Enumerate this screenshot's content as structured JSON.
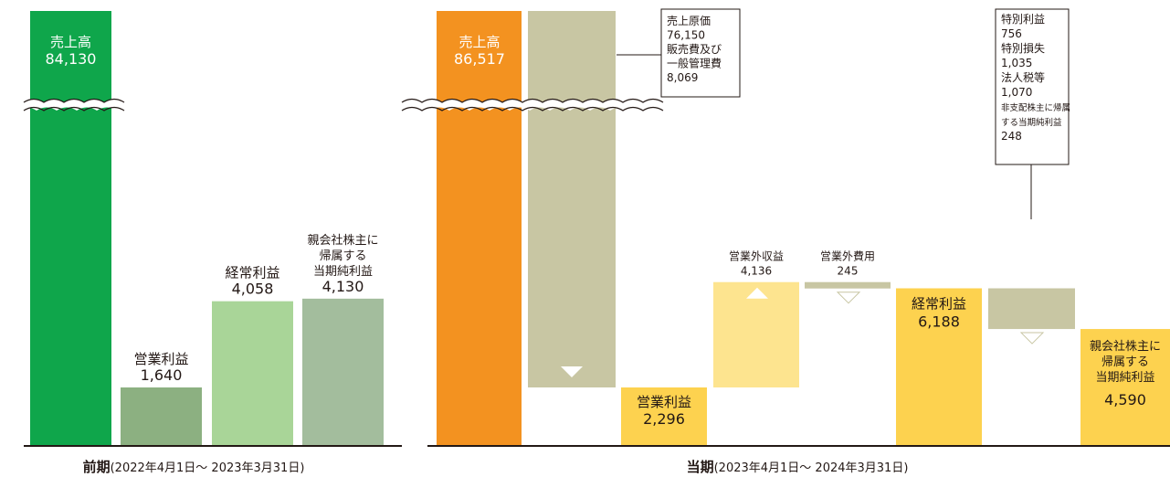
{
  "chart_data": [
    {
      "type": "bar",
      "period_label": "前期",
      "period_range": "(2022年4月1日〜 2023年3月31日)",
      "bars": [
        {
          "label": "売上高",
          "value": "84,130",
          "v": 84130,
          "color": "#0fa64b",
          "broken": true
        },
        {
          "label": "営業利益",
          "value": "1,640",
          "v": 1640,
          "color": "#8cb081"
        },
        {
          "label": "経常利益",
          "value": "4,058",
          "v": 4058,
          "color": "#a9d598"
        },
        {
          "label": "親会社株主に\n帰属する\n当期純利益",
          "value": "4,130",
          "v": 4130,
          "color": "#a3bd9d"
        }
      ]
    },
    {
      "type": "waterfall",
      "period_label": "当期",
      "period_range": "(2023年4月1日〜 2024年3月31日)",
      "bars": [
        {
          "label": "売上高",
          "value": "86,517",
          "v": 86517,
          "color": "#f39220",
          "broken": true
        },
        {
          "kind": "decrease",
          "color": "#c8c6a3",
          "items": [
            {
              "label": "売上原価",
              "value": "76,150"
            },
            {
              "label": "販売費及び\n一般管理費",
              "value": "8,069"
            }
          ]
        },
        {
          "label": "営業利益",
          "value": "2,296",
          "v": 2296,
          "color": "#fdd24f"
        },
        {
          "kind": "increase",
          "label": "営業外収益",
          "value": "4,136",
          "v": 4136,
          "color": "#fde48f"
        },
        {
          "kind": "decrease",
          "label": "営業外費用",
          "value": "245",
          "v": 245,
          "color": "#c8c6a3"
        },
        {
          "label": "経常利益",
          "value": "6,188",
          "v": 6188,
          "color": "#fdd24f"
        },
        {
          "kind": "decrease",
          "color": "#c8c6a3",
          "items": [
            {
              "label": "特別利益",
              "value": "756"
            },
            {
              "label": "特別損失",
              "value": "1,035"
            },
            {
              "label": "法人税等",
              "value": "1,070"
            },
            {
              "label": "非支配株主に帰属\nする当期純利益",
              "value": "248"
            }
          ]
        },
        {
          "label": "親会社株主に\n帰属する\n当期純利益",
          "value": "4,590",
          "v": 4590,
          "color": "#fdd24f"
        }
      ]
    }
  ]
}
